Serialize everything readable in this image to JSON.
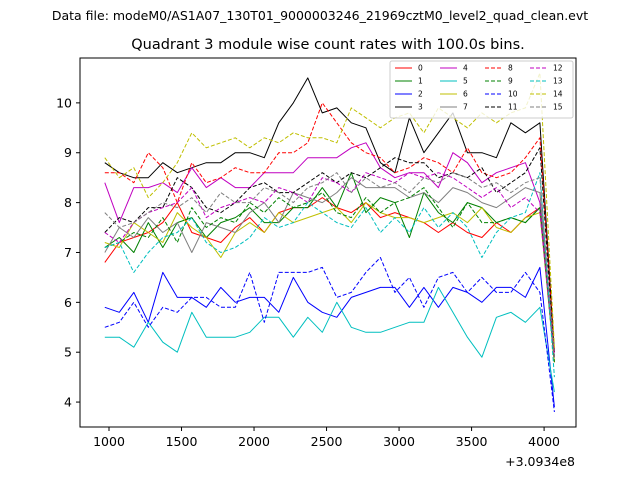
{
  "file_label": "Data file: modeM0/AS1A07_130T01_9000003246_21969cztM0_level2_quad_clean.evt",
  "chart_data": {
    "type": "line",
    "title": "Quadrant 3 module wise count rates with 100.0s bins.",
    "xlabel": "",
    "ylabel": "",
    "x_offset_label": "+3.0934e8",
    "xlim": [
      800,
      4220
    ],
    "ylim": [
      3.5,
      10.9
    ],
    "xticks": [
      1000,
      1500,
      2000,
      2500,
      3000,
      3500,
      4000
    ],
    "yticks": [
      4,
      5,
      6,
      7,
      8,
      9,
      10
    ],
    "grid": false,
    "legend_position": "top-right",
    "x": [
      971,
      1071,
      1171,
      1271,
      1371,
      1471,
      1571,
      1671,
      1771,
      1871,
      1971,
      2071,
      2171,
      2271,
      2371,
      2471,
      2571,
      2671,
      2771,
      2871,
      2971,
      3071,
      3171,
      3271,
      3371,
      3471,
      3571,
      3671,
      3771,
      3871,
      3971,
      4071
    ],
    "series": [
      {
        "name": "0",
        "color": "#ff0000",
        "dash": "solid",
        "values": [
          6.8,
          7.2,
          7.3,
          7.4,
          7.6,
          8.0,
          7.4,
          7.3,
          7.2,
          7.5,
          7.7,
          7.4,
          7.8,
          7.9,
          7.9,
          8.1,
          7.9,
          7.8,
          8.0,
          7.7,
          7.8,
          7.7,
          7.6,
          7.4,
          7.6,
          7.4,
          7.3,
          7.6,
          7.4,
          7.7,
          7.9,
          4.8
        ]
      },
      {
        "name": "1",
        "color": "#008000",
        "dash": "solid",
        "values": [
          7.1,
          7.3,
          7.0,
          7.6,
          7.1,
          7.6,
          7.7,
          7.3,
          7.6,
          7.7,
          7.9,
          7.6,
          7.6,
          7.9,
          7.9,
          8.3,
          7.9,
          8.6,
          7.8,
          8.1,
          8.0,
          7.3,
          8.2,
          7.8,
          7.6,
          8.0,
          7.9,
          7.6,
          7.7,
          7.6,
          7.9,
          4.9
        ]
      },
      {
        "name": "2",
        "color": "#0000ff",
        "dash": "solid",
        "values": [
          5.9,
          5.8,
          6.2,
          5.6,
          6.6,
          6.1,
          6.1,
          5.9,
          6.3,
          6.0,
          6.1,
          6.1,
          5.8,
          6.5,
          6.0,
          5.8,
          5.7,
          6.1,
          6.2,
          6.3,
          6.3,
          5.9,
          6.3,
          5.9,
          6.3,
          6.2,
          6.0,
          6.3,
          6.3,
          6.1,
          6.7,
          3.9
        ]
      },
      {
        "name": "3",
        "color": "#000000",
        "dash": "solid",
        "values": [
          8.8,
          8.6,
          8.5,
          8.5,
          8.8,
          8.6,
          8.7,
          8.8,
          8.8,
          9.0,
          9.0,
          8.9,
          9.6,
          10.0,
          10.5,
          9.8,
          9.9,
          9.6,
          9.5,
          8.8,
          8.6,
          9.7,
          9.0,
          9.4,
          9.8,
          9.0,
          9.0,
          8.9,
          9.6,
          9.4,
          9.6,
          5.0
        ]
      },
      {
        "name": "4",
        "color": "#c000c0",
        "dash": "solid",
        "values": [
          8.4,
          7.6,
          8.3,
          8.3,
          8.4,
          8.2,
          8.7,
          8.3,
          8.5,
          8.3,
          8.3,
          8.6,
          8.6,
          8.6,
          8.9,
          8.9,
          8.9,
          9.1,
          9.2,
          8.7,
          8.5,
          8.6,
          8.6,
          8.3,
          9.0,
          8.8,
          8.4,
          8.6,
          8.7,
          8.8,
          8.0,
          5.0
        ]
      },
      {
        "name": "5",
        "color": "#00bfbf",
        "dash": "solid",
        "values": [
          5.3,
          5.3,
          5.1,
          5.6,
          5.2,
          5.0,
          5.8,
          5.3,
          5.3,
          5.3,
          5.4,
          5.7,
          5.7,
          5.3,
          5.7,
          5.4,
          6.0,
          5.5,
          5.4,
          5.4,
          5.5,
          5.6,
          5.6,
          6.3,
          5.8,
          5.3,
          4.9,
          5.7,
          5.8,
          5.6,
          5.9,
          4.2
        ]
      },
      {
        "name": "6",
        "color": "#bfbf00",
        "dash": "solid",
        "values": [
          7.2,
          7.1,
          7.6,
          7.4,
          7.2,
          7.8,
          7.5,
          7.3,
          6.9,
          7.4,
          7.6,
          7.4,
          7.8,
          7.6,
          7.7,
          7.8,
          7.9,
          7.6,
          8.0,
          7.8,
          7.7,
          7.7,
          7.6,
          7.7,
          7.8,
          7.6,
          7.9,
          7.5,
          7.4,
          7.7,
          7.8,
          4.8
        ]
      },
      {
        "name": "7",
        "color": "#808080",
        "dash": "solid",
        "values": [
          7.0,
          7.5,
          7.3,
          7.7,
          7.4,
          7.6,
          7.0,
          7.6,
          7.5,
          7.4,
          7.8,
          8.0,
          7.6,
          8.2,
          8.1,
          8.0,
          8.2,
          8.5,
          8.3,
          8.3,
          8.3,
          8.1,
          8.2,
          8.0,
          8.3,
          8.2,
          8.0,
          7.9,
          8.1,
          8.3,
          8.2,
          4.9
        ]
      },
      {
        "name": "8",
        "color": "#ff0000",
        "dash": "dashed",
        "values": [
          8.6,
          8.6,
          8.4,
          9.0,
          8.7,
          8.0,
          8.8,
          8.4,
          8.5,
          8.7,
          8.6,
          8.6,
          9.0,
          9.0,
          9.2,
          10.0,
          9.6,
          9.2,
          9.0,
          8.9,
          8.6,
          8.7,
          8.9,
          8.8,
          8.6,
          9.1,
          8.6,
          8.5,
          8.6,
          8.9,
          9.3,
          5.0
        ]
      },
      {
        "name": "9",
        "color": "#008000",
        "dash": "dashed",
        "values": [
          7.1,
          7.2,
          7.4,
          7.3,
          7.7,
          7.2,
          7.9,
          7.5,
          7.7,
          7.6,
          8.0,
          7.8,
          8.1,
          7.9,
          8.0,
          8.2,
          7.8,
          7.7,
          8.1,
          7.8,
          8.0,
          8.1,
          8.3,
          7.9,
          7.5,
          8.0,
          7.6,
          7.6,
          7.7,
          7.6,
          7.9,
          4.8
        ]
      },
      {
        "name": "10",
        "color": "#0000ff",
        "dash": "dashed",
        "values": [
          5.5,
          5.6,
          6.0,
          5.5,
          5.9,
          5.8,
          6.1,
          6.1,
          5.9,
          5.9,
          6.6,
          5.6,
          6.6,
          6.6,
          6.6,
          6.7,
          6.1,
          6.2,
          6.6,
          6.9,
          6.2,
          6.5,
          5.9,
          6.5,
          6.6,
          6.2,
          6.5,
          6.2,
          6.2,
          6.6,
          6.2,
          3.8
        ]
      },
      {
        "name": "11",
        "color": "#000000",
        "dash": "dashed",
        "values": [
          7.4,
          7.7,
          7.6,
          7.9,
          7.9,
          8.5,
          8.3,
          7.9,
          7.8,
          8.0,
          8.3,
          8.4,
          8.2,
          8.2,
          8.4,
          8.6,
          8.4,
          8.6,
          8.5,
          8.7,
          8.9,
          8.8,
          8.8,
          8.5,
          8.6,
          8.5,
          8.7,
          8.2,
          8.4,
          8.6,
          9.1,
          4.9
        ]
      },
      {
        "name": "12",
        "color": "#c000c0",
        "dash": "dashed",
        "values": [
          7.4,
          7.2,
          7.6,
          7.8,
          7.9,
          8.0,
          8.3,
          7.7,
          7.9,
          8.0,
          8.1,
          8.0,
          8.3,
          8.2,
          8.0,
          8.5,
          8.4,
          8.2,
          8.6,
          8.5,
          8.4,
          8.6,
          8.5,
          8.6,
          8.5,
          8.3,
          8.1,
          8.3,
          7.9,
          8.1,
          7.8,
          4.9
        ]
      },
      {
        "name": "13",
        "color": "#00bfbf",
        "dash": "dashed",
        "values": [
          7.1,
          7.2,
          6.6,
          7.0,
          7.3,
          7.4,
          7.7,
          7.2,
          7.0,
          7.1,
          7.3,
          7.7,
          7.5,
          7.6,
          8.0,
          7.8,
          7.6,
          7.5,
          7.9,
          7.4,
          7.7,
          7.4,
          7.9,
          7.5,
          7.8,
          7.5,
          6.9,
          7.4,
          7.7,
          7.8,
          8.6,
          4.5
        ]
      },
      {
        "name": "14",
        "color": "#bfbf00",
        "dash": "dashed",
        "values": [
          8.9,
          8.5,
          8.7,
          8.1,
          8.4,
          8.8,
          9.4,
          9.1,
          9.2,
          9.3,
          9.1,
          9.3,
          9.2,
          9.4,
          9.3,
          9.3,
          9.2,
          9.9,
          9.7,
          9.5,
          9.7,
          9.8,
          9.4,
          9.9,
          9.7,
          9.5,
          9.8,
          9.6,
          9.8,
          9.9,
          10.6,
          5.1
        ]
      },
      {
        "name": "15",
        "color": "#808080",
        "dash": "dashed",
        "values": [
          7.8,
          7.5,
          7.6,
          7.8,
          8.0,
          7.9,
          8.1,
          7.8,
          8.2,
          8.0,
          8.0,
          8.3,
          8.2,
          8.0,
          8.3,
          8.4,
          8.6,
          8.2,
          8.5,
          8.3,
          8.4,
          8.2,
          8.5,
          8.4,
          8.6,
          8.5,
          8.3,
          8.4,
          8.2,
          8.4,
          8.5,
          4.9
        ]
      }
    ]
  }
}
